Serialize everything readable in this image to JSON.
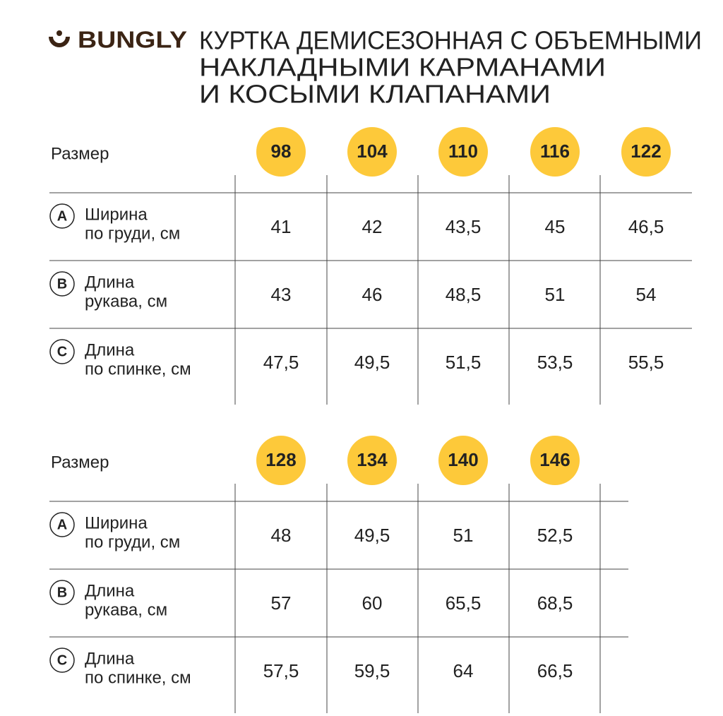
{
  "brand": "BUNGLY",
  "title": [
    "КУРТКА ДЕМИСЕЗОННАЯ С ОБЪЕМНЫМИ",
    "НАКЛАДНЫМИ КАРМАНАМИ",
    "И КОСЫМИ КЛАПАНАМИ"
  ],
  "tables": [
    {
      "size_label": "Размер",
      "sizes": [
        "98",
        "104",
        "110",
        "116",
        "122"
      ],
      "rows": [
        {
          "letter": "A",
          "label": [
            "Ширина",
            "по груди, см"
          ],
          "values": [
            "41",
            "42",
            "43,5",
            "45",
            "46,5"
          ]
        },
        {
          "letter": "B",
          "label": [
            "Длина",
            "рукава, см"
          ],
          "values": [
            "43",
            "46",
            "48,5",
            "51",
            "54"
          ]
        },
        {
          "letter": "C",
          "label": [
            "Длина",
            "по спинке, см"
          ],
          "values": [
            "47,5",
            "49,5",
            "51,5",
            "53,5",
            "55,5"
          ]
        }
      ]
    },
    {
      "size_label": "Размер",
      "sizes": [
        "128",
        "134",
        "140",
        "146"
      ],
      "rows": [
        {
          "letter": "A",
          "label": [
            "Ширина",
            "по груди, см"
          ],
          "values": [
            "48",
            "49,5",
            "51",
            "52,5"
          ]
        },
        {
          "letter": "B",
          "label": [
            "Длина",
            "рукава, см"
          ],
          "values": [
            "57",
            "60",
            "65,5",
            "68,5"
          ]
        },
        {
          "letter": "C",
          "label": [
            "Длина",
            "по спинке, см"
          ],
          "values": [
            "57,5",
            "59,5",
            "64",
            "66,5"
          ]
        }
      ]
    }
  ]
}
